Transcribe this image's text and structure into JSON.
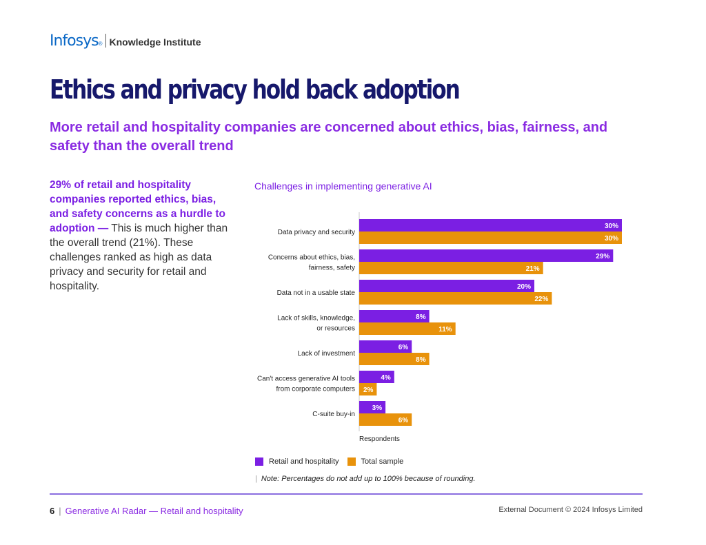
{
  "header": {
    "brand": "Infosys",
    "brand_mark": "®",
    "sub_brand": "Knowledge Institute"
  },
  "page": {
    "title": "Ethics and privacy hold back adoption",
    "subtitle": "More retail and hospitality companies are concerned about ethics, bias, fairness, and safety than the overall trend"
  },
  "callout": {
    "highlight": "29% of retail and hospitality companies reported ethics, bias, and safety concerns as a hurdle to adoption —",
    "body": " This is much higher than the overall trend (21%). These challenges ranked as high as data privacy and security for retail and hospitality."
  },
  "colors": {
    "retail": "#7b1fe3",
    "total": "#e8920b",
    "axis": "#c8c8c8"
  },
  "chart_data": {
    "type": "bar",
    "orientation": "horizontal",
    "title": "Challenges in implementing generative AI",
    "xlabel": "Respondents",
    "ylabel": "",
    "xlim": [
      0,
      35
    ],
    "categories": [
      [
        "Data privacy and security"
      ],
      [
        "Concerns about ethics, bias,",
        "fairness, safety"
      ],
      [
        "Data not in a usable state"
      ],
      [
        "Lack of skills, knowledge,",
        "or resources"
      ],
      [
        "Lack of investment"
      ],
      [
        "Can't access generative AI tools",
        "from corporate computers"
      ],
      [
        "C-suite buy-in"
      ]
    ],
    "series": [
      {
        "name": "Retail and hospitality",
        "values": [
          30,
          29,
          20,
          8,
          6,
          4,
          3
        ]
      },
      {
        "name": "Total sample",
        "values": [
          30,
          21,
          22,
          11,
          8,
          2,
          6
        ]
      }
    ],
    "value_suffix": "%",
    "note": "Note: Percentages do not add up to 100% because of rounding."
  },
  "footer": {
    "page_number": "6",
    "separator": "|",
    "doc_title": "Generative AI Radar — Retail and hospitality",
    "copyright": "External Document © 2024 Infosys Limited"
  }
}
